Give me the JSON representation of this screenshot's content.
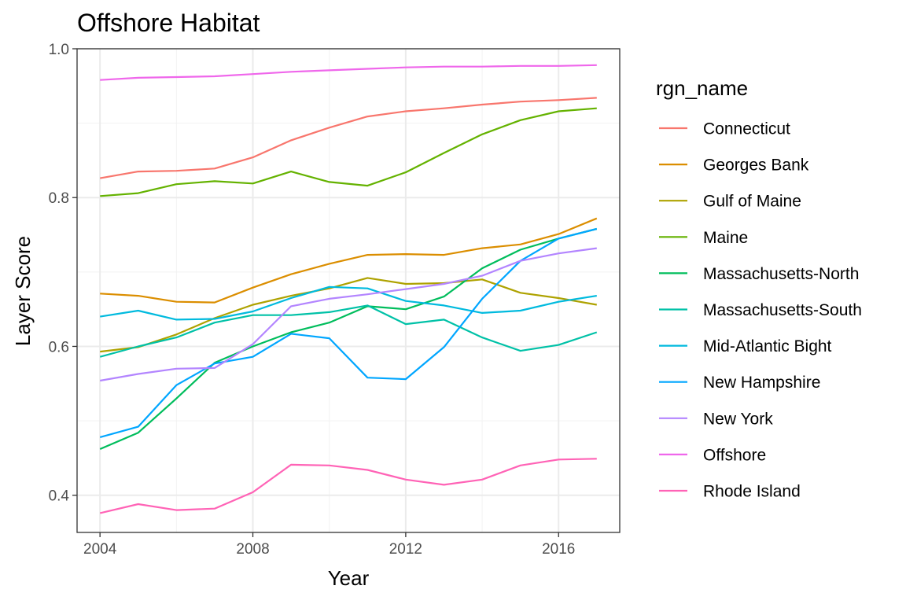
{
  "chart_data": {
    "type": "line",
    "title": "Offshore Habitat",
    "xlabel": "Year",
    "ylabel": "Layer Score",
    "xlim": [
      2003.4,
      2017.6
    ],
    "ylim": [
      0.35,
      1.0
    ],
    "x_ticks": [
      2004,
      2008,
      2012,
      2016
    ],
    "y_ticks": [
      0.4,
      0.6,
      0.8,
      1.0
    ],
    "x_tick_labels": [
      "2004",
      "2008",
      "2012",
      "2016"
    ],
    "y_tick_labels": [
      "0.4",
      "0.6",
      "0.8",
      "1.0"
    ],
    "grid": true,
    "legend_title": "rgn_name",
    "legend_position": "right",
    "x": [
      2004,
      2005,
      2006,
      2007,
      2008,
      2009,
      2010,
      2011,
      2012,
      2013,
      2014,
      2015,
      2016,
      2017
    ],
    "series": [
      {
        "name": "Connecticut",
        "color": "#F8766D",
        "values": [
          0.826,
          0.835,
          0.836,
          0.839,
          0.854,
          0.877,
          0.894,
          0.909,
          0.916,
          0.92,
          0.925,
          0.929,
          0.931,
          0.934
        ]
      },
      {
        "name": "Georges Bank",
        "color": "#DB8E00",
        "values": [
          0.671,
          0.668,
          0.66,
          0.659,
          0.679,
          0.697,
          0.711,
          0.723,
          0.724,
          0.723,
          0.732,
          0.737,
          0.751,
          0.772
        ]
      },
      {
        "name": "Gulf of Maine",
        "color": "#AEA200",
        "values": [
          0.593,
          0.599,
          0.616,
          0.638,
          0.656,
          0.668,
          0.678,
          0.692,
          0.684,
          0.685,
          0.69,
          0.672,
          0.665,
          0.656
        ]
      },
      {
        "name": "Maine",
        "color": "#64B200",
        "values": [
          0.802,
          0.806,
          0.818,
          0.822,
          0.819,
          0.835,
          0.821,
          0.816,
          0.834,
          0.86,
          0.885,
          0.904,
          0.916,
          0.92
        ]
      },
      {
        "name": "Massachusetts-North",
        "color": "#00BD5C",
        "values": [
          0.462,
          0.484,
          0.53,
          0.578,
          0.6,
          0.619,
          0.632,
          0.654,
          0.65,
          0.667,
          0.705,
          0.73,
          0.745,
          0.758
        ]
      },
      {
        "name": "Massachusetts-South",
        "color": "#00C1A7",
        "values": [
          0.586,
          0.6,
          0.612,
          0.632,
          0.642,
          0.642,
          0.646,
          0.655,
          0.63,
          0.636,
          0.612,
          0.594,
          0.602,
          0.619
        ]
      },
      {
        "name": "Mid-Atlantic Bight",
        "color": "#00BADE",
        "values": [
          0.64,
          0.648,
          0.636,
          0.637,
          0.647,
          0.665,
          0.68,
          0.678,
          0.661,
          0.655,
          0.645,
          0.648,
          0.66,
          0.668
        ]
      },
      {
        "name": "New Hampshire",
        "color": "#00A6FF",
        "values": [
          0.478,
          0.492,
          0.548,
          0.577,
          0.586,
          0.617,
          0.611,
          0.558,
          0.556,
          0.599,
          0.664,
          0.715,
          0.745,
          0.758
        ]
      },
      {
        "name": "New York",
        "color": "#B385FF",
        "values": [
          0.554,
          0.563,
          0.57,
          0.571,
          0.603,
          0.654,
          0.664,
          0.67,
          0.677,
          0.684,
          0.695,
          0.715,
          0.725,
          0.732
        ]
      },
      {
        "name": "Offshore",
        "color": "#EF67EB",
        "values": [
          0.958,
          0.961,
          0.962,
          0.963,
          0.966,
          0.969,
          0.971,
          0.973,
          0.975,
          0.976,
          0.976,
          0.977,
          0.977,
          0.978
        ]
      },
      {
        "name": "Rhode Island",
        "color": "#FF63B6",
        "values": [
          0.376,
          0.388,
          0.38,
          0.382,
          0.404,
          0.441,
          0.44,
          0.434,
          0.421,
          0.414,
          0.421,
          0.44,
          0.448,
          0.449
        ]
      }
    ]
  }
}
